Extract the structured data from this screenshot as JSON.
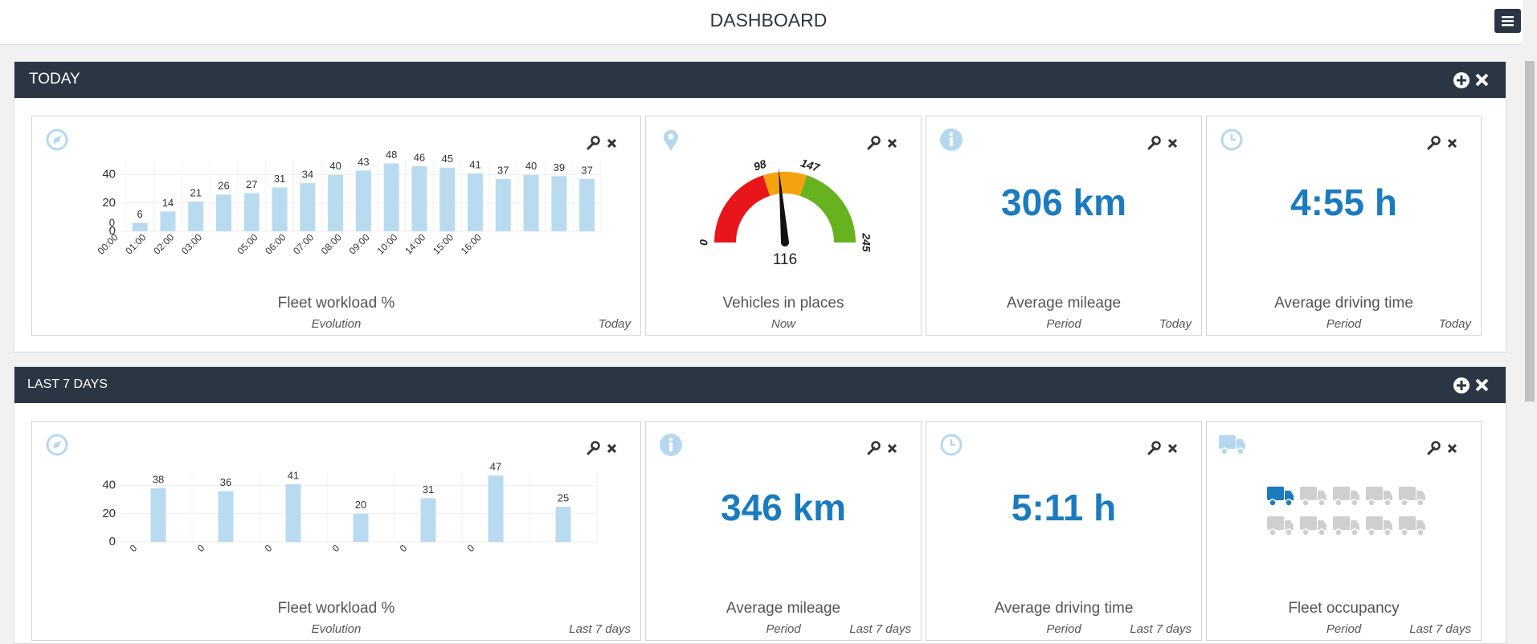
{
  "header": {
    "title": "DASHBOARD"
  },
  "sections": [
    {
      "title": "TODAY",
      "widgets": [
        {
          "kind": "chart",
          "icon": "compass",
          "title": "Fleet workload %",
          "subtitle": "Evolution",
          "period": "Today",
          "chart": {
            "type": "bar",
            "categories": [
              "00:00",
              "01:00",
              "02:00",
              "03:00",
              null,
              "05:00",
              "06:00",
              "07:00",
              "08:00",
              "09:00",
              "10:00",
              "14:00",
              "15:00",
              "16:00",
              null,
              null,
              null,
              null
            ],
            "values": [
              0,
              6,
              14,
              21,
              26,
              27,
              31,
              34,
              40,
              43,
              48,
              46,
              45,
              41,
              37,
              40,
              39,
              37
            ],
            "color": "#b9dbf0",
            "ylim": [
              0,
              50
            ],
            "yticks": [
              0,
              20,
              40
            ],
            "grid": true
          }
        },
        {
          "kind": "gauge",
          "icon": "pin",
          "title": "Vehicles in places",
          "subtitle": "Now",
          "chart": {
            "type": "gauge",
            "ticks": [
              0,
              98,
              147,
              245
            ],
            "band_colors": [
              "#e8161b",
              "#f5a20f",
              "#66b21f"
            ],
            "value": 116
          }
        },
        {
          "kind": "kpi",
          "icon": "info",
          "value": "306 km",
          "title": "Average mileage",
          "subtitle": "Period",
          "period": "Today"
        },
        {
          "kind": "kpi",
          "icon": "clock",
          "value": "4:55 h",
          "title": "Average driving time",
          "subtitle": "Period",
          "period": "Today"
        }
      ]
    },
    {
      "title": "LAST 7 DAYS",
      "widgets": [
        {
          "kind": "chart",
          "icon": "compass",
          "title": "Fleet workload %",
          "subtitle": "Evolution",
          "period": "Last 7 days",
          "chart": {
            "type": "bar",
            "categories": [
              "0",
              "0",
              "0",
              "0",
              "0",
              "0",
              null
            ],
            "values": [
              38,
              36,
              41,
              20,
              31,
              47,
              25
            ],
            "color": "#b9dbf0",
            "ylim": [
              0,
              50
            ],
            "yticks": [
              0,
              20,
              40
            ],
            "grid": true
          }
        },
        {
          "kind": "kpi",
          "icon": "info",
          "value": "346 km",
          "title": "Average mileage",
          "subtitle": "Period",
          "period": "Last 7 days"
        },
        {
          "kind": "kpi",
          "icon": "clock",
          "value": "5:11 h",
          "title": "Average driving time",
          "subtitle": "Period",
          "period": "Last 7 days"
        },
        {
          "kind": "occupancy",
          "icon": "truck",
          "occupied": 1,
          "total": 10,
          "title": "Fleet occupancy",
          "subtitle": "Period",
          "period": "Last 7 days"
        }
      ]
    }
  ]
}
